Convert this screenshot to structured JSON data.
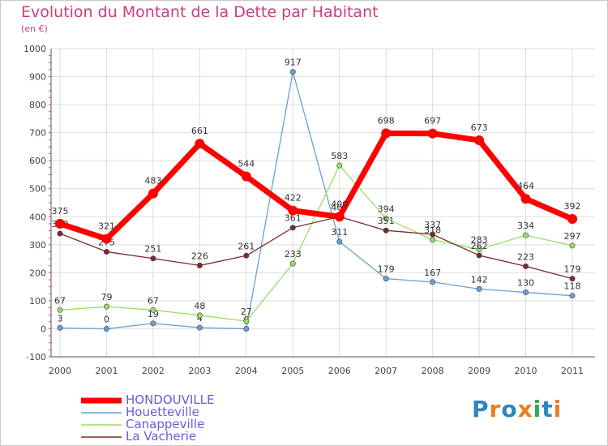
{
  "chart_data": {
    "type": "line",
    "title": "Evolution du Montant de la Dette par Habitant",
    "subtitle": "(en €)",
    "xlabel": "",
    "ylabel": "",
    "categories": [
      "2000",
      "2001",
      "2002",
      "2003",
      "2004",
      "2005",
      "2006",
      "2007",
      "2008",
      "2009",
      "2010",
      "2011"
    ],
    "ylim": [
      -100,
      1000
    ],
    "yticks": [
      -100,
      0,
      100,
      200,
      300,
      400,
      500,
      600,
      700,
      800,
      900,
      1000
    ],
    "grid": true,
    "legend_position": "bottom-left",
    "series": [
      {
        "name": "HONDOUVILLE",
        "color": "#ff0000",
        "values": [
          375,
          321,
          483,
          661,
          544,
          422,
          400,
          698,
          697,
          673,
          464,
          392
        ]
      },
      {
        "name": "Houetteville",
        "color": "#6a9fd0",
        "values": [
          3,
          0,
          19,
          4,
          0,
          917,
          311,
          179,
          167,
          142,
          130,
          118
        ]
      },
      {
        "name": "Canappeville",
        "color": "#99dd66",
        "values": [
          67,
          79,
          67,
          48,
          27,
          233,
          583,
          394,
          318,
          283,
          334,
          297
        ]
      },
      {
        "name": "La Vacherie",
        "color": "#7a2a2a",
        "values": [
          340,
          275,
          251,
          226,
          261,
          361,
          400,
          351,
          337,
          262,
          223,
          179
        ]
      }
    ]
  },
  "logo": {
    "letters": [
      "P",
      "r",
      "o",
      "x",
      "i",
      "t",
      "i"
    ],
    "colors": [
      "#2e86c1",
      "#e67e22",
      "#2e86c1",
      "#e67e22",
      "#27ae60",
      "#2e86c1",
      "#e67e22"
    ]
  }
}
